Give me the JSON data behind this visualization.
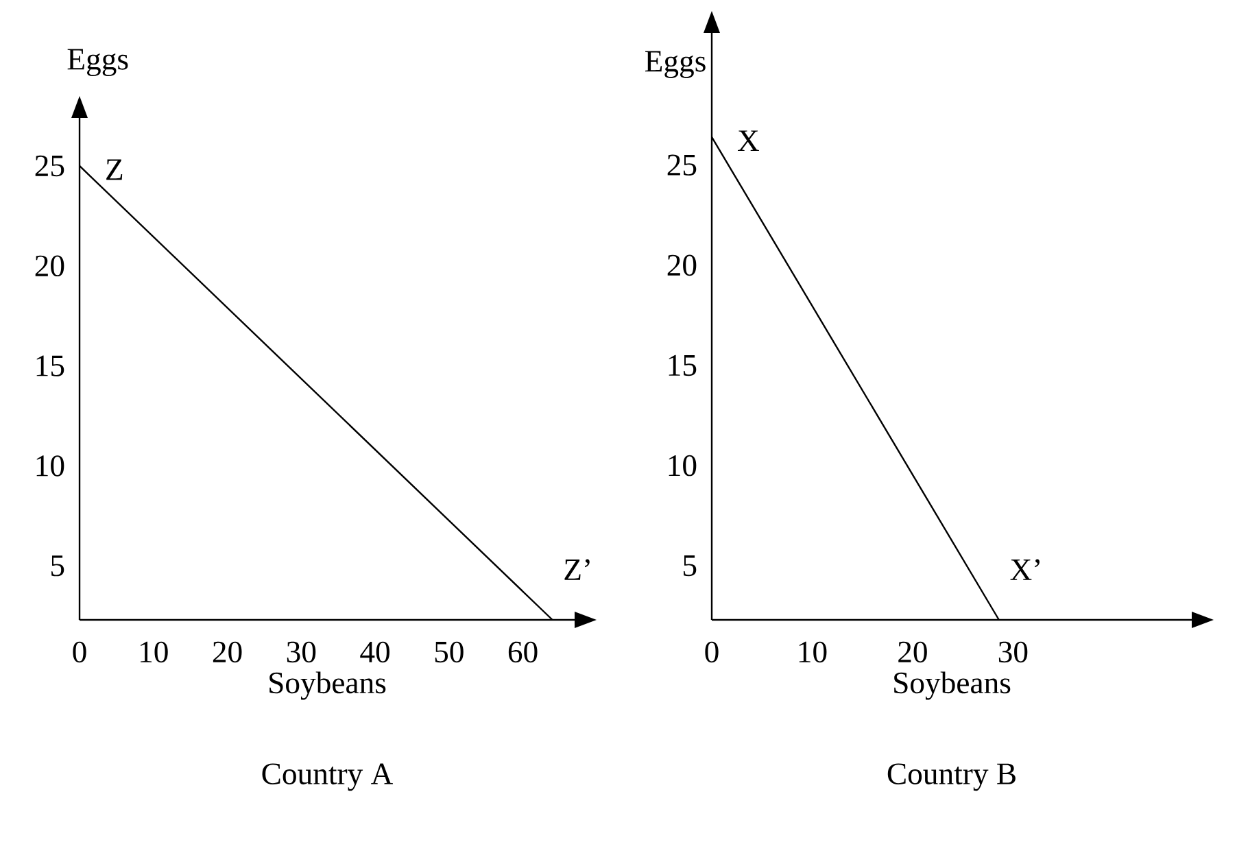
{
  "chart_data": [
    {
      "type": "line",
      "title": "Country A",
      "xlabel": "Soybeans",
      "ylabel": "Eggs",
      "x": [
        0,
        64
      ],
      "series": [
        {
          "color": "#000000",
          "values": [
            25,
            2.3
          ]
        }
      ],
      "xlim": [
        0,
        67
      ],
      "ylim": [
        2.3,
        27.4
      ],
      "xticks": [
        0,
        10,
        20,
        30,
        40,
        50,
        60
      ],
      "yticks": [
        5,
        10,
        15,
        20,
        25
      ],
      "annotations": [
        {
          "text": "Z",
          "x": 0,
          "y": 25
        },
        {
          "text": "Z’",
          "x": 64,
          "y": 2.3
        }
      ]
    },
    {
      "type": "line",
      "title": "Country B",
      "xlabel": "Soybeans",
      "ylabel": "Eggs",
      "x": [
        0,
        28.6
      ],
      "series": [
        {
          "color": "#000000",
          "values": [
            26.4,
            2.3
          ]
        }
      ],
      "xlim": [
        0,
        47.8
      ],
      "ylim": [
        2.3,
        31.6
      ],
      "xticks": [
        0,
        10,
        20,
        30
      ],
      "yticks": [
        5,
        10,
        15,
        20,
        25
      ],
      "annotations": [
        {
          "text": "X",
          "x": 0,
          "y": 26.4
        },
        {
          "text": "X’",
          "x": 28.6,
          "y": 2.3
        }
      ]
    }
  ]
}
